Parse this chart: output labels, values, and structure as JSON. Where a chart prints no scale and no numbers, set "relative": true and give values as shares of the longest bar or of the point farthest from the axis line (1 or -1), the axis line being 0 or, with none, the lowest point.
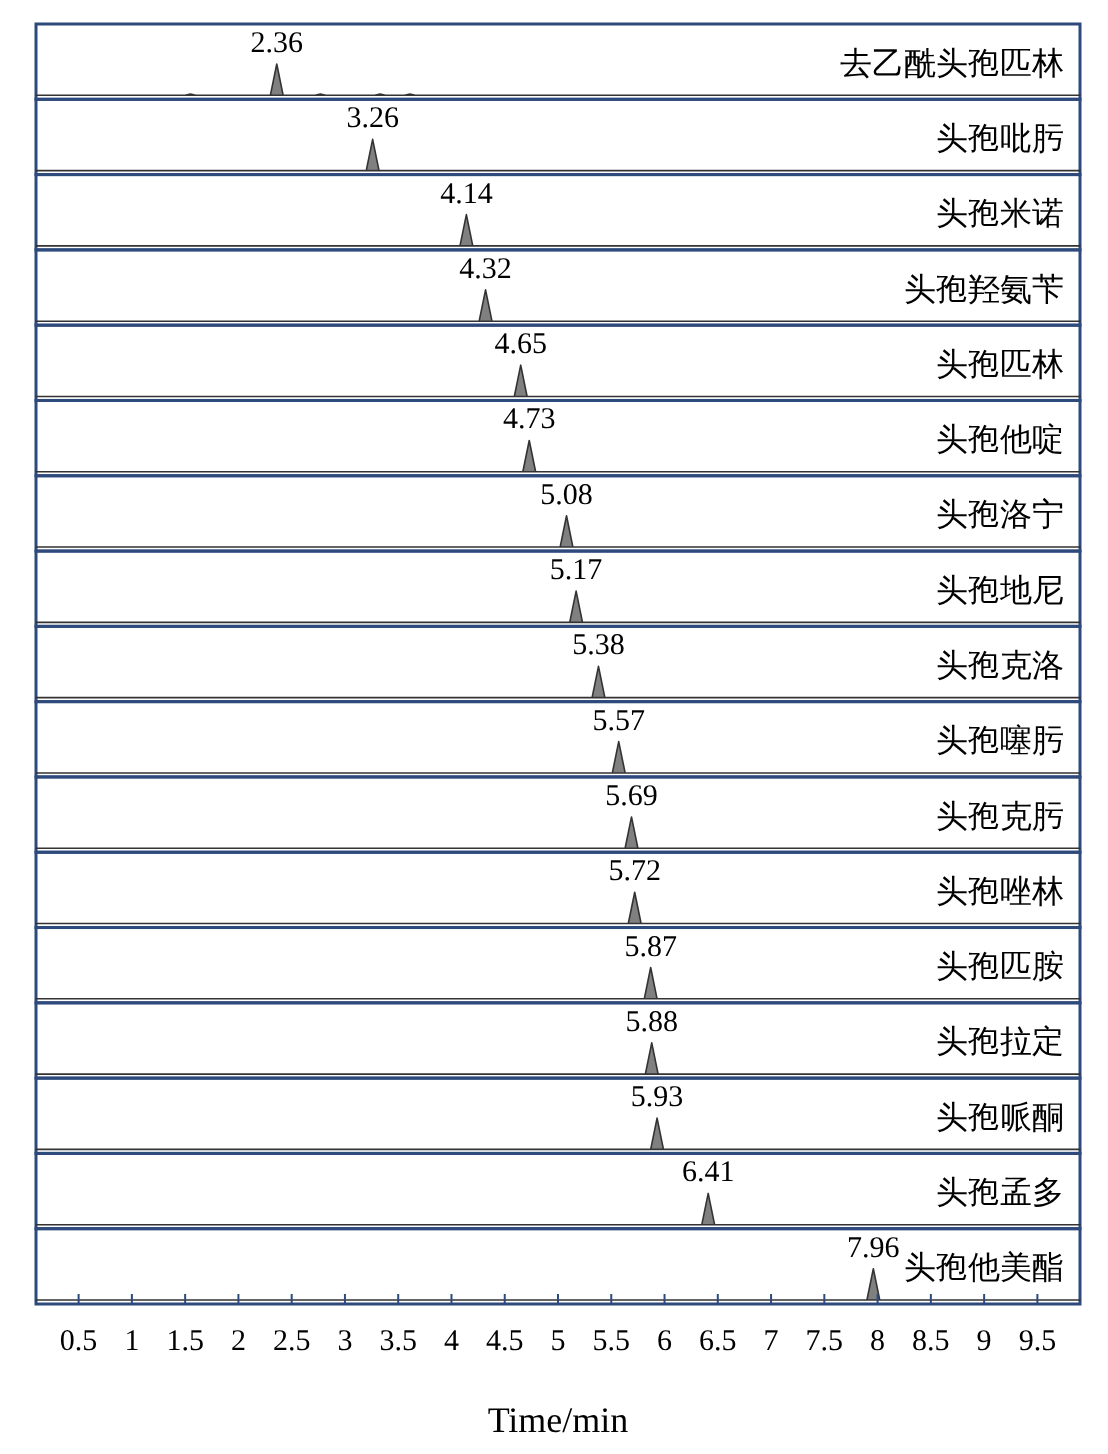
{
  "chart_data": [
    {
      "type": "area",
      "title": "去乙酰头孢匹林",
      "relative": true,
      "color": "#808080",
      "xlim": [
        0.1,
        9.9
      ],
      "tick_labels": false,
      "x": [
        0.1,
        1.5,
        1.55,
        1.6,
        2.3,
        2.36,
        2.42,
        2.72,
        2.77,
        2.82,
        3.28,
        3.33,
        3.38,
        3.56,
        3.61,
        3.66,
        9.9
      ],
      "values": [
        0,
        0,
        0.04,
        0,
        0,
        1,
        0,
        0,
        0.04,
        0,
        0,
        0.04,
        0,
        0,
        0.04,
        0,
        0
      ],
      "annotations": [
        {
          "text": "2.36",
          "x": 2.36,
          "y": 1
        }
      ]
    },
    {
      "type": "area",
      "title": "头孢吡肟",
      "relative": true,
      "color": "#808080",
      "xlim": [
        0.1,
        9.9
      ],
      "tick_labels": false,
      "x": [
        0.1,
        3.2,
        3.26,
        3.32,
        9.9
      ],
      "values": [
        0,
        0,
        1,
        0,
        0
      ],
      "annotations": [
        {
          "text": "3.26",
          "x": 3.26,
          "y": 1
        }
      ]
    },
    {
      "type": "area",
      "title": "头孢米诺",
      "relative": true,
      "color": "#808080",
      "xlim": [
        0.1,
        9.9
      ],
      "tick_labels": false,
      "x": [
        0.1,
        4.08,
        4.14,
        4.2,
        9.9
      ],
      "values": [
        0,
        0,
        1,
        0,
        0
      ],
      "annotations": [
        {
          "text": "4.14",
          "x": 4.14,
          "y": 1
        }
      ]
    },
    {
      "type": "area",
      "title": "头孢羟氨苄",
      "relative": true,
      "color": "#808080",
      "xlim": [
        0.1,
        9.9
      ],
      "tick_labels": false,
      "x": [
        0.1,
        4.26,
        4.32,
        4.38,
        9.9
      ],
      "values": [
        0,
        0,
        1,
        0,
        0
      ],
      "annotations": [
        {
          "text": "4.32",
          "x": 4.32,
          "y": 1
        }
      ]
    },
    {
      "type": "area",
      "title": "头孢匹林",
      "relative": true,
      "color": "#808080",
      "xlim": [
        0.1,
        9.9
      ],
      "tick_labels": false,
      "x": [
        0.1,
        4.59,
        4.65,
        4.71,
        9.9
      ],
      "values": [
        0,
        0,
        1,
        0,
        0
      ],
      "annotations": [
        {
          "text": "4.65",
          "x": 4.65,
          "y": 1
        }
      ]
    },
    {
      "type": "area",
      "title": "头孢他啶",
      "relative": true,
      "color": "#808080",
      "xlim": [
        0.1,
        9.9
      ],
      "tick_labels": false,
      "x": [
        0.1,
        4.67,
        4.73,
        4.79,
        9.9
      ],
      "values": [
        0,
        0,
        1,
        0,
        0
      ],
      "annotations": [
        {
          "text": "4.73",
          "x": 4.73,
          "y": 1
        }
      ]
    },
    {
      "type": "area",
      "title": "头孢洛宁",
      "relative": true,
      "color": "#808080",
      "xlim": [
        0.1,
        9.9
      ],
      "tick_labels": false,
      "x": [
        0.1,
        5.02,
        5.08,
        5.14,
        9.9
      ],
      "values": [
        0,
        0,
        1,
        0,
        0
      ],
      "annotations": [
        {
          "text": "5.08",
          "x": 5.08,
          "y": 1
        }
      ]
    },
    {
      "type": "area",
      "title": "头孢地尼",
      "relative": true,
      "color": "#808080",
      "xlim": [
        0.1,
        9.9
      ],
      "tick_labels": false,
      "x": [
        0.1,
        5.11,
        5.17,
        5.23,
        9.9
      ],
      "values": [
        0,
        0,
        1,
        0,
        0
      ],
      "annotations": [
        {
          "text": "5.17",
          "x": 5.17,
          "y": 1
        }
      ]
    },
    {
      "type": "area",
      "title": "头孢克洛",
      "relative": true,
      "color": "#808080",
      "xlim": [
        0.1,
        9.9
      ],
      "tick_labels": false,
      "x": [
        0.1,
        5.32,
        5.38,
        5.44,
        9.9
      ],
      "values": [
        0,
        0,
        1,
        0,
        0
      ],
      "annotations": [
        {
          "text": "5.38",
          "x": 5.38,
          "y": 1
        }
      ]
    },
    {
      "type": "area",
      "title": "头孢噻肟",
      "relative": true,
      "color": "#808080",
      "xlim": [
        0.1,
        9.9
      ],
      "tick_labels": false,
      "x": [
        0.1,
        5.51,
        5.57,
        5.63,
        9.9
      ],
      "values": [
        0,
        0,
        1,
        0,
        0
      ],
      "annotations": [
        {
          "text": "5.57",
          "x": 5.57,
          "y": 1
        }
      ]
    },
    {
      "type": "area",
      "title": "头孢克肟",
      "relative": true,
      "color": "#808080",
      "xlim": [
        0.1,
        9.9
      ],
      "tick_labels": false,
      "x": [
        0.1,
        5.63,
        5.69,
        5.75,
        9.9
      ],
      "values": [
        0,
        0,
        1,
        0,
        0
      ],
      "annotations": [
        {
          "text": "5.69",
          "x": 5.69,
          "y": 1
        }
      ]
    },
    {
      "type": "area",
      "title": "头孢唑林",
      "relative": true,
      "color": "#808080",
      "xlim": [
        0.1,
        9.9
      ],
      "tick_labels": false,
      "x": [
        0.1,
        5.66,
        5.72,
        5.78,
        9.9
      ],
      "values": [
        0,
        0,
        1,
        0,
        0
      ],
      "annotations": [
        {
          "text": "5.72",
          "x": 5.72,
          "y": 1
        }
      ]
    },
    {
      "type": "area",
      "title": "头孢匹胺",
      "relative": true,
      "color": "#808080",
      "xlim": [
        0.1,
        9.9
      ],
      "tick_labels": false,
      "x": [
        0.1,
        5.81,
        5.87,
        5.93,
        9.9
      ],
      "values": [
        0,
        0,
        1,
        0,
        0
      ],
      "annotations": [
        {
          "text": "5.87",
          "x": 5.87,
          "y": 1
        }
      ]
    },
    {
      "type": "area",
      "title": "头孢拉定",
      "relative": true,
      "color": "#808080",
      "xlim": [
        0.1,
        9.9
      ],
      "tick_labels": false,
      "x": [
        0.1,
        5.82,
        5.88,
        5.94,
        9.9
      ],
      "values": [
        0,
        0,
        1,
        0,
        0
      ],
      "annotations": [
        {
          "text": "5.88",
          "x": 5.88,
          "y": 1
        }
      ]
    },
    {
      "type": "area",
      "title": "头孢哌酮",
      "relative": true,
      "color": "#808080",
      "xlim": [
        0.1,
        9.9
      ],
      "tick_labels": false,
      "x": [
        0.1,
        5.87,
        5.93,
        5.99,
        9.9
      ],
      "values": [
        0,
        0,
        1,
        0,
        0
      ],
      "annotations": [
        {
          "text": "5.93",
          "x": 5.93,
          "y": 1
        }
      ]
    },
    {
      "type": "area",
      "title": "头孢孟多",
      "relative": true,
      "color": "#808080",
      "xlim": [
        0.1,
        9.9
      ],
      "tick_labels": false,
      "x": [
        0.1,
        6.35,
        6.41,
        6.47,
        9.9
      ],
      "values": [
        0,
        0,
        1,
        0,
        0
      ],
      "annotations": [
        {
          "text": "6.41",
          "x": 6.41,
          "y": 1
        }
      ]
    },
    {
      "type": "area",
      "title": "头孢他美酯",
      "relative": true,
      "color": "#808080",
      "xlim": [
        0.1,
        9.9
      ],
      "tick_labels": "x",
      "xlabel": "Time/min",
      "xticks": [
        0.5,
        1,
        1.5,
        2,
        2.5,
        3,
        3.5,
        4,
        4.5,
        5,
        5.5,
        6,
        6.5,
        7,
        7.5,
        8,
        8.5,
        9,
        9.5
      ],
      "x": [
        0.1,
        7.9,
        7.96,
        8.02,
        9.9
      ],
      "values": [
        0,
        0,
        1,
        0,
        0
      ],
      "annotations": [
        {
          "text": "7.96",
          "x": 7.96,
          "y": 1
        }
      ]
    }
  ]
}
